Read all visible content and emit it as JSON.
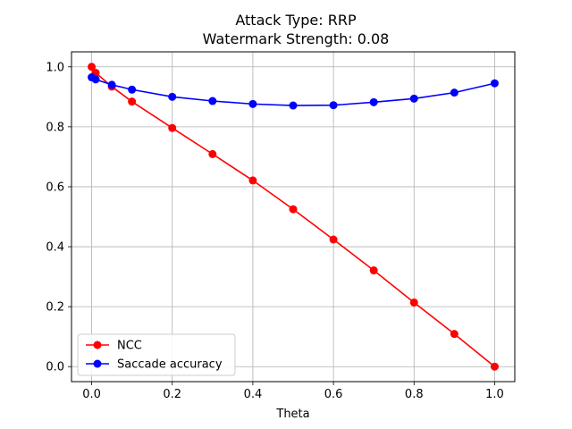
{
  "chart_data": {
    "type": "line",
    "title_line1": "Attack Type: RRP",
    "title_line2": "Watermark Strength: 0.08",
    "xlabel": "Theta",
    "ylabel": "",
    "xlim": [
      -0.05,
      1.05
    ],
    "ylim": [
      -0.05,
      1.05
    ],
    "xticks": [
      0.0,
      0.2,
      0.4,
      0.6,
      0.8,
      1.0
    ],
    "xtick_labels": [
      "0.0",
      "0.2",
      "0.4",
      "0.6",
      "0.8",
      "1.0"
    ],
    "yticks": [
      0.0,
      0.2,
      0.4,
      0.6,
      0.8,
      1.0
    ],
    "ytick_labels": [
      "0.0",
      "0.2",
      "0.4",
      "0.6",
      "0.8",
      "1.0"
    ],
    "grid": true,
    "legend_position": "lower-left",
    "x": [
      0.0,
      0.01,
      0.05,
      0.1,
      0.2,
      0.3,
      0.4,
      0.5,
      0.6,
      0.7,
      0.8,
      0.9,
      1.0
    ],
    "series": [
      {
        "name": "NCC",
        "color": "#ff0000",
        "values": [
          1.0,
          0.98,
          0.934,
          0.884,
          0.796,
          0.709,
          0.621,
          0.525,
          0.424,
          0.321,
          0.214,
          0.109,
          0.0
        ]
      },
      {
        "name": "Saccade accuracy",
        "color": "#0000ff",
        "values": [
          0.965,
          0.958,
          0.94,
          0.924,
          0.9,
          0.886,
          0.876,
          0.871,
          0.872,
          0.882,
          0.894,
          0.914,
          0.945
        ]
      }
    ]
  }
}
